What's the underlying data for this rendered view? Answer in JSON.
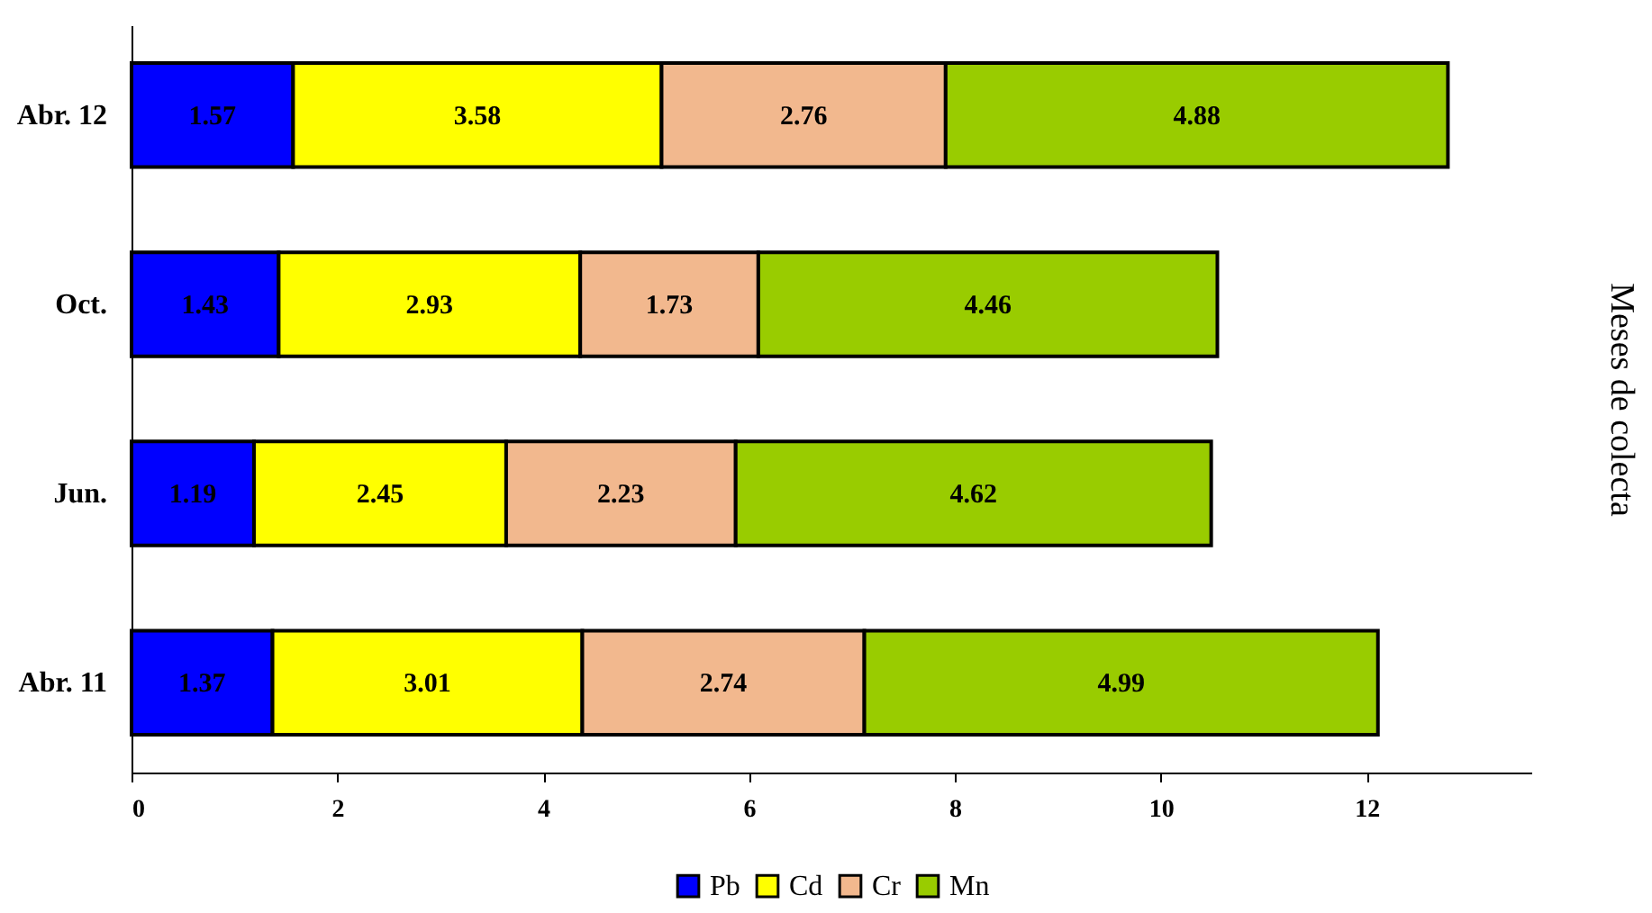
{
  "chart_data": {
    "type": "bar",
    "orientation": "horizontal",
    "stacked": true,
    "ylabel": "Meses de colecta",
    "categories": [
      "Abr. 12",
      "Oct.",
      "Jun.",
      "Abr. 11"
    ],
    "series": [
      {
        "name": "Pb",
        "color": "#0000ff",
        "values": [
          1.57,
          1.43,
          1.19,
          1.37
        ]
      },
      {
        "name": "Cd",
        "color": "#ffff00",
        "values": [
          3.58,
          2.93,
          2.45,
          3.01
        ]
      },
      {
        "name": "Cr",
        "color": "#f2b88e",
        "values": [
          2.76,
          1.73,
          2.23,
          2.74
        ]
      },
      {
        "name": "Mn",
        "color": "#99cc00",
        "values": [
          4.88,
          4.46,
          4.62,
          4.99
        ]
      }
    ],
    "xlim": [
      0,
      13.6
    ],
    "xticks": [
      0,
      2,
      4,
      6,
      8,
      10,
      12
    ],
    "data_labels": true,
    "legend": "bottom",
    "grid": false
  }
}
